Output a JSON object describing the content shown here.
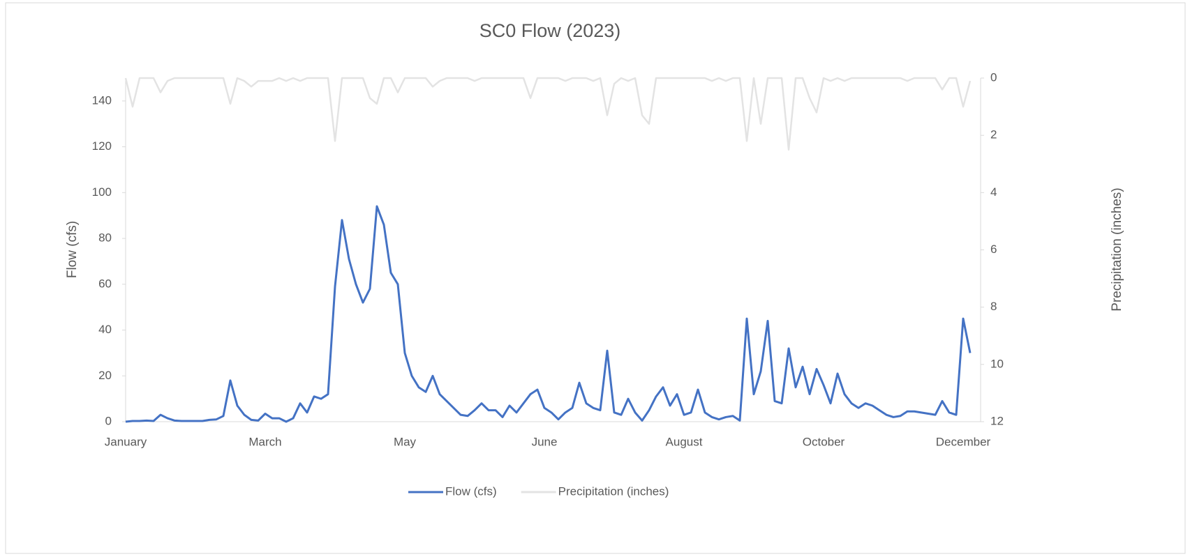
{
  "chart_data": {
    "type": "line",
    "title": "SC0 Flow (2023)",
    "ylabel": "Flow (cfs)",
    "y2label": "Precipitation (inches)",
    "categories": [
      "January",
      null,
      null,
      null,
      null,
      null,
      null,
      null,
      null,
      null,
      null,
      null,
      null,
      null,
      null,
      null,
      null,
      null,
      null,
      null,
      "March",
      null,
      null,
      null,
      null,
      null,
      null,
      null,
      null,
      null,
      null,
      null,
      null,
      null,
      null,
      null,
      null,
      null,
      null,
      null,
      "May",
      null,
      null,
      null,
      null,
      null,
      null,
      null,
      null,
      null,
      null,
      null,
      null,
      null,
      null,
      null,
      null,
      null,
      null,
      null,
      "June",
      null,
      null,
      null,
      null,
      null,
      null,
      null,
      null,
      null,
      null,
      null,
      null,
      null,
      null,
      null,
      null,
      null,
      null,
      null,
      "August",
      null,
      null,
      null,
      null,
      null,
      null,
      null,
      null,
      null,
      null,
      null,
      null,
      null,
      null,
      null,
      null,
      null,
      null,
      null,
      "October",
      null,
      null,
      null,
      null,
      null,
      null,
      null,
      null,
      null,
      null,
      null,
      null,
      null,
      null,
      null,
      null,
      null,
      null,
      null,
      "December",
      null
    ],
    "series": [
      {
        "name": "Flow (cfs)",
        "color": "#4472c4",
        "values": [
          0,
          0.3,
          0.3,
          0.5,
          0.3,
          3,
          1.5,
          0.5,
          0.3,
          0.3,
          0.3,
          0.3,
          0.8,
          1,
          2.5,
          18,
          7,
          3,
          0.8,
          0.5,
          3.5,
          1.5,
          1.5,
          0,
          1.5,
          8,
          4,
          11,
          10,
          12,
          59,
          88,
          71,
          60,
          52,
          58,
          94,
          86,
          65,
          60,
          30,
          20,
          15,
          13,
          20,
          12,
          9,
          6,
          3,
          2.5,
          5,
          8,
          5,
          5,
          2,
          7,
          4,
          8,
          12,
          14,
          6,
          4,
          1,
          4,
          6,
          17,
          8,
          6,
          5,
          31,
          4,
          3,
          10,
          4,
          0.5,
          5,
          11,
          15,
          7,
          12,
          3,
          4,
          14,
          4,
          2,
          1,
          2,
          2.5,
          0.5,
          45,
          12,
          22,
          44,
          9,
          8,
          32,
          15,
          24,
          12,
          23,
          16,
          8,
          21,
          12,
          8,
          6,
          8,
          7,
          5,
          3,
          2,
          2.5,
          4.5,
          4.5,
          4,
          3.5,
          3,
          9,
          4,
          3,
          45,
          30
        ]
      },
      {
        "name": "Precipitation (inches)",
        "color": "#e3e3e3",
        "axis": "y2",
        "values": [
          0,
          1.0,
          0,
          0,
          0,
          0.5,
          0.1,
          0,
          0,
          0,
          0,
          0,
          0,
          0,
          0,
          0.9,
          0,
          0.1,
          0.3,
          0.1,
          0.1,
          0.1,
          0,
          0.1,
          0,
          0.1,
          0,
          0,
          0,
          0,
          2.2,
          0,
          0,
          0,
          0,
          0.7,
          0.9,
          0,
          0,
          0.5,
          0,
          0,
          0,
          0,
          0.3,
          0.1,
          0,
          0,
          0,
          0,
          0.1,
          0,
          0,
          0,
          0,
          0,
          0,
          0,
          0.7,
          0,
          0,
          0,
          0,
          0.1,
          0,
          0,
          0,
          0.1,
          0,
          1.3,
          0.2,
          0,
          0.1,
          0,
          1.3,
          1.6,
          0,
          0,
          0,
          0,
          0,
          0,
          0,
          0,
          0.1,
          0,
          0.1,
          0,
          0,
          2.2,
          0,
          1.6,
          0,
          0,
          0,
          2.5,
          0,
          0,
          0.7,
          1.2,
          0,
          0.1,
          0,
          0.1,
          0,
          0,
          0,
          0,
          0,
          0,
          0,
          0,
          0.1,
          0,
          0,
          0,
          0,
          0.4,
          0,
          0,
          1.0,
          0.1
        ]
      }
    ],
    "ylim": [
      0,
      150
    ],
    "yticks": [
      0,
      20,
      40,
      60,
      80,
      100,
      120,
      140
    ],
    "y2lim": [
      0,
      12
    ],
    "y2ticks": [
      0,
      2,
      4,
      6,
      8,
      10,
      12
    ],
    "y2_reversed": true,
    "legend": "bottom"
  }
}
